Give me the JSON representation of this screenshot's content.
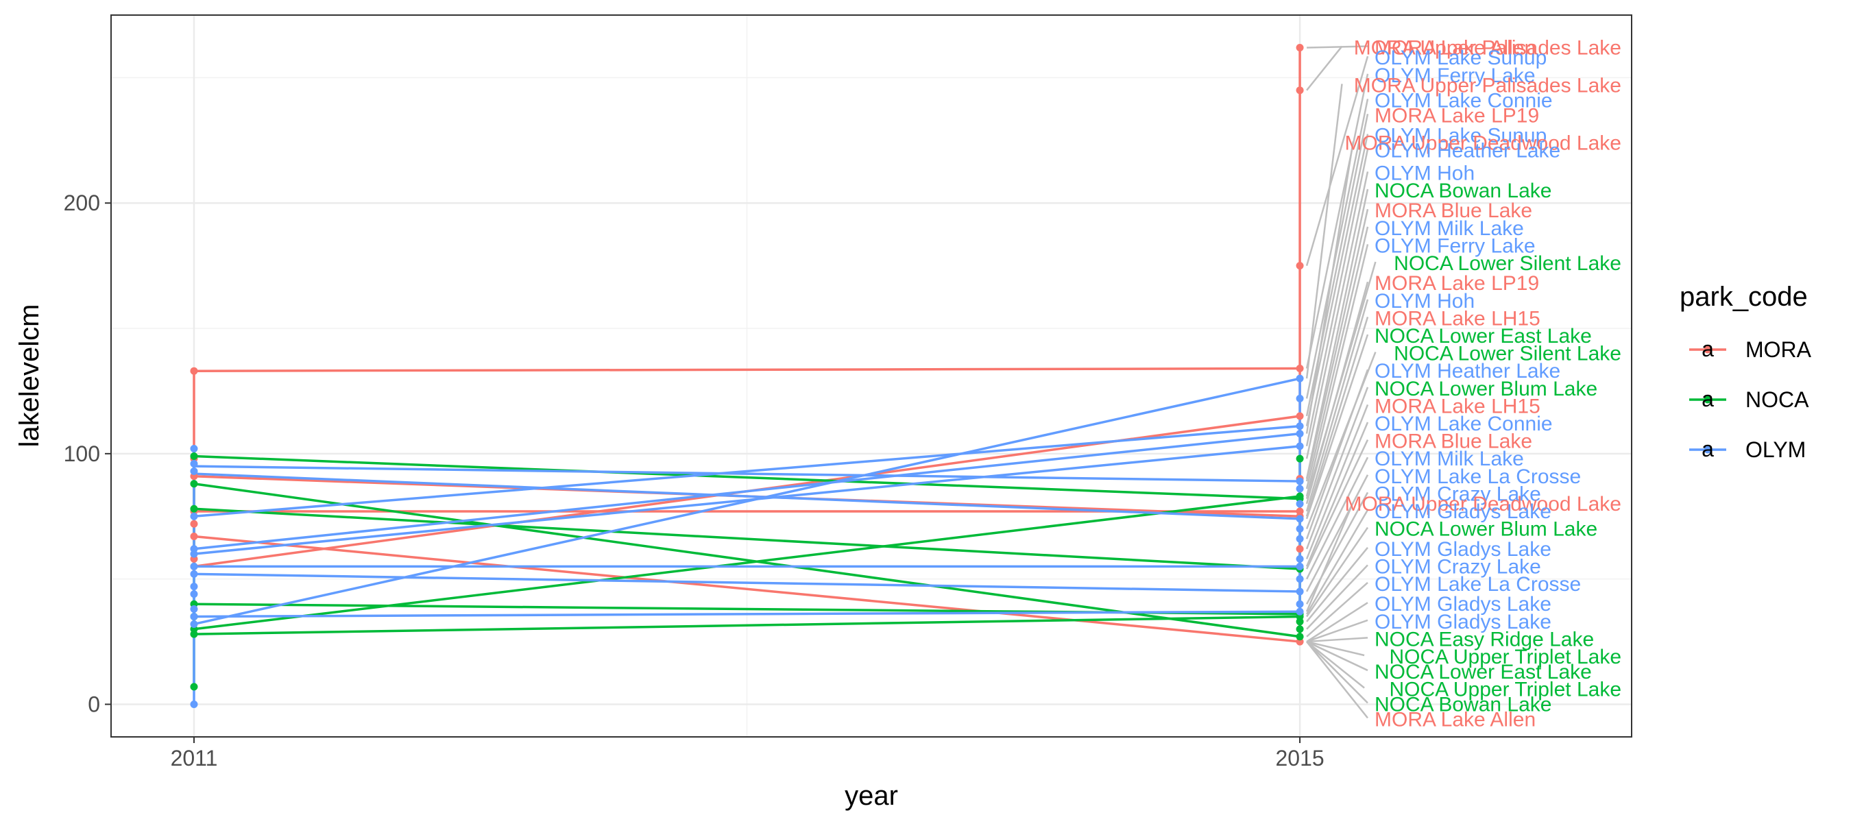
{
  "chart_data": {
    "type": "line",
    "title": "",
    "xlabel": "year",
    "ylabel": "lakelevelcm",
    "x": [
      2011,
      2015
    ],
    "xlim": [
      2010.7,
      2016.2
    ],
    "ylim": [
      -13,
      275
    ],
    "x_ticks": [
      "2011",
      "2015"
    ],
    "y_ticks": [
      "0",
      "100",
      "200"
    ],
    "grid": true,
    "legend": {
      "title": "park_code",
      "position": "right",
      "key_glyph": "a"
    },
    "colors": {
      "MORA": "#F8766D",
      "NOCA": "#00BA38",
      "OLYM": "#619CFF"
    },
    "series": [
      {
        "group": "MORA",
        "values": [
          133,
          134
        ]
      },
      {
        "group": "MORA",
        "values": [
          55,
          115
        ]
      },
      {
        "group": "MORA",
        "values": [
          91,
          75
        ]
      },
      {
        "group": "MORA",
        "values": [
          77,
          77
        ]
      },
      {
        "group": "MORA",
        "values": [
          67,
          25
        ]
      },
      {
        "group": "NOCA",
        "values": [
          99,
          82
        ]
      },
      {
        "group": "NOCA",
        "values": [
          88,
          27
        ]
      },
      {
        "group": "NOCA",
        "values": [
          78,
          54
        ]
      },
      {
        "group": "NOCA",
        "values": [
          30,
          83
        ]
      },
      {
        "group": "NOCA",
        "values": [
          40,
          36
        ]
      },
      {
        "group": "NOCA",
        "values": [
          28,
          35
        ]
      },
      {
        "group": "OLYM",
        "values": [
          95,
          89
        ]
      },
      {
        "group": "OLYM",
        "values": [
          92,
          74
        ]
      },
      {
        "group": "OLYM",
        "values": [
          75,
          111
        ]
      },
      {
        "group": "OLYM",
        "values": [
          62,
          108
        ]
      },
      {
        "group": "OLYM",
        "values": [
          60,
          103
        ]
      },
      {
        "group": "OLYM",
        "values": [
          55,
          55
        ]
      },
      {
        "group": "OLYM",
        "values": [
          52,
          45
        ]
      },
      {
        "group": "OLYM",
        "values": [
          35,
          37
        ]
      },
      {
        "group": "OLYM",
        "values": [
          32,
          130
        ]
      }
    ],
    "points_2011": [
      {
        "group": "MORA",
        "values": [
          133,
          98,
          91,
          77,
          72,
          67,
          58,
          55
        ]
      },
      {
        "group": "NOCA",
        "values": [
          99,
          88,
          78,
          40,
          35,
          30,
          28,
          7
        ]
      },
      {
        "group": "OLYM",
        "values": [
          102,
          96,
          93,
          75,
          62,
          60,
          55,
          52,
          47,
          44,
          38,
          35,
          32,
          0
        ]
      }
    ],
    "points_2015": [
      {
        "group": "MORA",
        "values": [
          262,
          245,
          175,
          134,
          115,
          90,
          77,
          75,
          62,
          25
        ]
      },
      {
        "group": "NOCA",
        "values": [
          98,
          83,
          82,
          54,
          36,
          35,
          33,
          30,
          27
        ]
      },
      {
        "group": "OLYM",
        "values": [
          130,
          122,
          111,
          108,
          103,
          89,
          86,
          80,
          74,
          70,
          66,
          58,
          55,
          50,
          45,
          40,
          37
        ]
      }
    ],
    "labels": [
      {
        "text": "MORA Lake Allen",
        "group": "MORA",
        "y": 262
      },
      {
        "text": "MORA Upper Palisades Lake",
        "group": "MORA",
        "y": 262
      },
      {
        "text": "OLYM Lake Sunup",
        "group": "OLYM",
        "y": 258
      },
      {
        "text": "OLYM Ferry Lake",
        "group": "OLYM",
        "y": 251
      },
      {
        "text": "MORA Upper Palisades Lake",
        "group": "MORA",
        "y": 247
      },
      {
        "text": "OLYM Lake Connie",
        "group": "OLYM",
        "y": 241
      },
      {
        "text": "MORA Lake LP19",
        "group": "MORA",
        "y": 235
      },
      {
        "text": "OLYM Lake Sunup",
        "group": "OLYM",
        "y": 227
      },
      {
        "text": "MORA Upper Deadwood Lake",
        "group": "MORA",
        "y": 224
      },
      {
        "text": "OLYM Heather Lake",
        "group": "OLYM",
        "y": 221
      },
      {
        "text": "OLYM Hoh",
        "group": "OLYM",
        "y": 212
      },
      {
        "text": "NOCA Bowan Lake",
        "group": "NOCA",
        "y": 205
      },
      {
        "text": "MORA Blue Lake",
        "group": "MORA",
        "y": 197
      },
      {
        "text": "OLYM Milk Lake",
        "group": "OLYM",
        "y": 190
      },
      {
        "text": "OLYM Ferry Lake",
        "group": "OLYM",
        "y": 183
      },
      {
        "text": "NOCA Lower Silent Lake",
        "group": "NOCA",
        "y": 176
      },
      {
        "text": "MORA Lake LP19",
        "group": "MORA",
        "y": 168
      },
      {
        "text": "OLYM Hoh",
        "group": "OLYM",
        "y": 161
      },
      {
        "text": "MORA Lake LH15",
        "group": "MORA",
        "y": 154
      },
      {
        "text": "NOCA Lower East Lake",
        "group": "NOCA",
        "y": 147
      },
      {
        "text": "NOCA Lower Silent Lake",
        "group": "NOCA",
        "y": 140
      },
      {
        "text": "OLYM Heather Lake",
        "group": "OLYM",
        "y": 133
      },
      {
        "text": "NOCA Lower Blum Lake",
        "group": "NOCA",
        "y": 126
      },
      {
        "text": "MORA Lake LH15",
        "group": "MORA",
        "y": 119
      },
      {
        "text": "OLYM Lake Connie",
        "group": "OLYM",
        "y": 112
      },
      {
        "text": "MORA Blue Lake",
        "group": "MORA",
        "y": 105
      },
      {
        "text": "OLYM Milk Lake",
        "group": "OLYM",
        "y": 98
      },
      {
        "text": "OLYM Lake La Crosse",
        "group": "OLYM",
        "y": 91
      },
      {
        "text": "OLYM Crazy Lake",
        "group": "OLYM",
        "y": 84
      },
      {
        "text": "MORA Upper Deadwood Lake",
        "group": "MORA",
        "y": 80
      },
      {
        "text": "OLYM Gladys Lake",
        "group": "OLYM",
        "y": 77
      },
      {
        "text": "NOCA Lower Blum Lake",
        "group": "NOCA",
        "y": 70
      },
      {
        "text": "OLYM Gladys Lake",
        "group": "OLYM",
        "y": 62
      },
      {
        "text": "OLYM Crazy Lake",
        "group": "OLYM",
        "y": 55
      },
      {
        "text": "OLYM Lake La Crosse",
        "group": "OLYM",
        "y": 48
      },
      {
        "text": "OLYM Gladys Lake",
        "group": "OLYM",
        "y": 40
      },
      {
        "text": "OLYM Gladys Lake",
        "group": "OLYM",
        "y": 33
      },
      {
        "text": "NOCA Easy Ridge Lake",
        "group": "NOCA",
        "y": 26
      },
      {
        "text": "NOCA Upper Triplet Lake",
        "group": "NOCA",
        "y": 19
      },
      {
        "text": "NOCA Lower East Lake",
        "group": "NOCA",
        "y": 13
      },
      {
        "text": "NOCA Upper Triplet Lake",
        "group": "NOCA",
        "y": 6
      },
      {
        "text": "NOCA Bowan Lake",
        "group": "NOCA",
        "y": 0
      },
      {
        "text": "MORA Lake Allen",
        "group": "MORA",
        "y": -6
      }
    ],
    "segment_color": "#BEBEBE"
  }
}
